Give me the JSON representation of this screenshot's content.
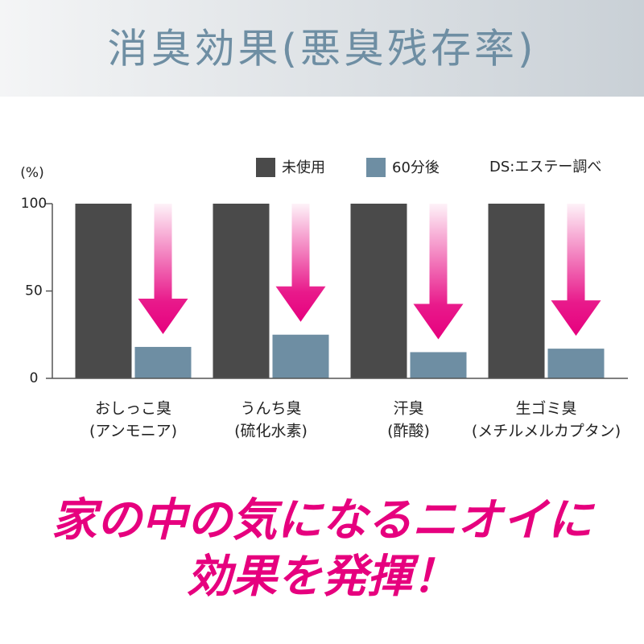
{
  "chart_data": {
    "type": "bar",
    "title": "消臭効果(悪臭残存率)",
    "y_label": "(%)",
    "note": "DS:エステー調べ",
    "categories": [
      [
        "おしっこ臭",
        "(アンモニア)"
      ],
      [
        "うんち臭",
        "(硫化水素)"
      ],
      [
        "汗臭",
        "(酢酸)"
      ],
      [
        "生ゴミ臭",
        "(メチルメルカプタン)"
      ]
    ],
    "series": [
      {
        "name": "未使用",
        "color": "#4a4a4a",
        "values": [
          100,
          100,
          100,
          100
        ]
      },
      {
        "name": "60分後",
        "color": "#6e8ea3",
        "values": [
          18,
          25,
          15,
          17
        ]
      }
    ],
    "ylim": [
      0,
      100
    ],
    "yticks": [
      0,
      50,
      100
    ],
    "caption": [
      "家の中の気になるニオイに",
      "効果を発揮！"
    ]
  }
}
